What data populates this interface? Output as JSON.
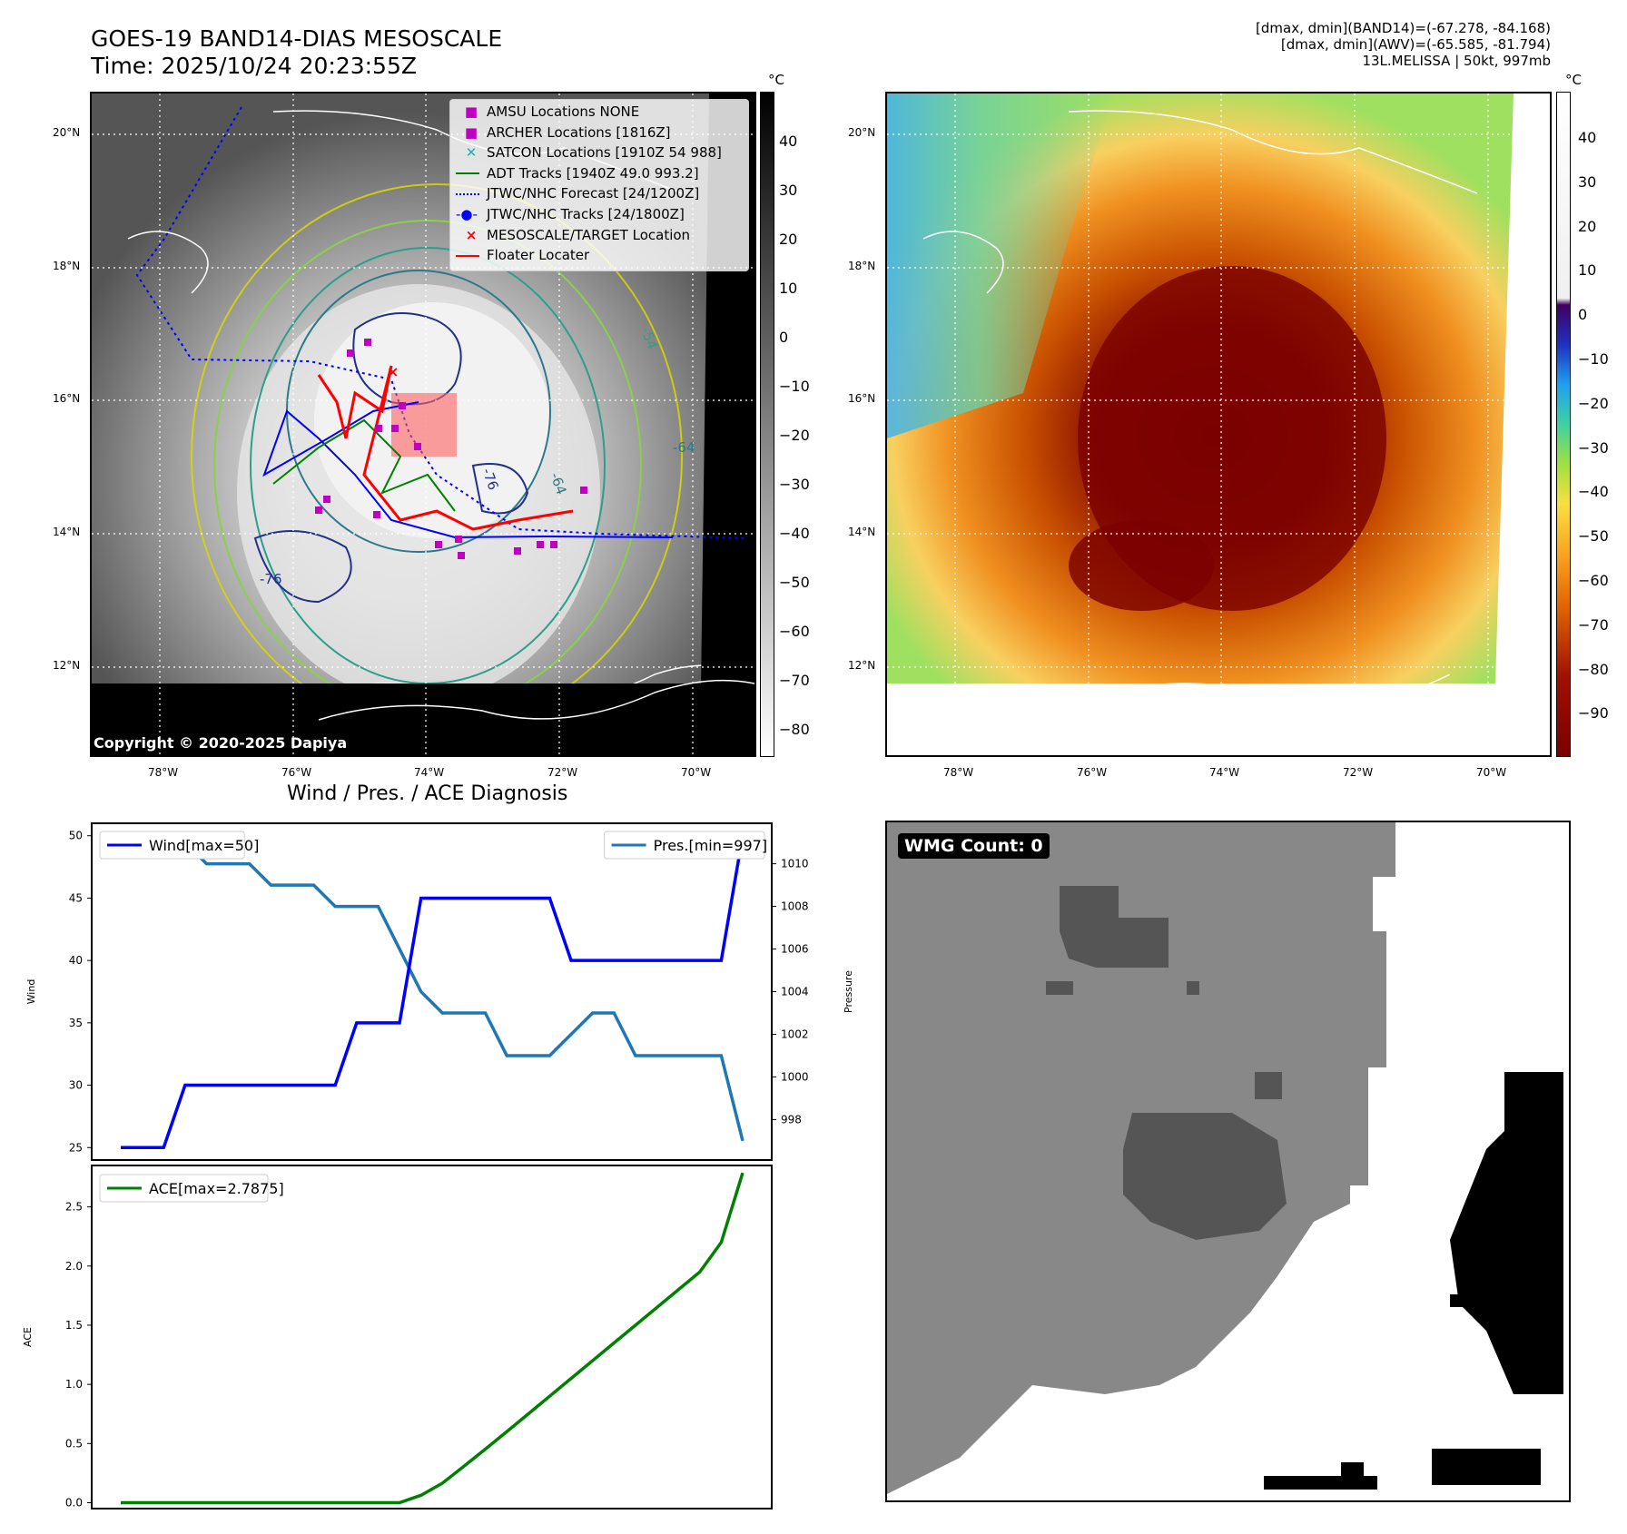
{
  "header": {
    "title_line1": "GOES-19 BAND14-DIAS MESOSCALE",
    "title_line2": "Time: 2025/10/24 20:23:55Z",
    "info_line1": "[dmax, dmin](BAND14)=(-67.278, -84.168)",
    "info_line2": "[dmax, dmin](AWV)=(-65.585, -81.794)",
    "info_line3": "13L.MELISSA | 50kt, 997mb"
  },
  "map_axes": {
    "lon_labels": [
      "78°W",
      "76°W",
      "74°W",
      "72°W",
      "70°W"
    ],
    "lat_labels": [
      "20°N",
      "18°N",
      "16°N",
      "14°N",
      "12°N"
    ]
  },
  "left_map": {
    "copyright": "Copyright © 2020-2025 Dapiya",
    "contour_labels": [
      "-76",
      "-64",
      "-54",
      "-76",
      "-64"
    ],
    "legend": [
      {
        "label": "AMSU Locations NONE",
        "color": "#c000c0"
      },
      {
        "label": "ARCHER Locations [1816Z]",
        "color": "#c000c0"
      },
      {
        "label": "SATCON Locations [1910Z 54 988]",
        "color": "#20b0b0"
      },
      {
        "label": "ADT Tracks [1940Z 49.0 993.2]",
        "color": "#008000"
      },
      {
        "label": "JTWC/NHC Forecast [24/1200Z]",
        "color": "#0000ff"
      },
      {
        "label": "JTWC/NHC Tracks [24/1800Z]",
        "color": "#0000ff"
      },
      {
        "label": "MESOSCALE/TARGET Location",
        "color": "#ff0000"
      },
      {
        "label": "Floater Locater",
        "color": "#ff0000"
      }
    ]
  },
  "colorbar_gray": {
    "unit": "°C",
    "ticks": [
      "40",
      "30",
      "20",
      "10",
      "0",
      "−10",
      "−20",
      "−30",
      "−40",
      "−50",
      "−60",
      "−70",
      "−80"
    ]
  },
  "colorbar_color": {
    "unit": "°C",
    "ticks": [
      "40",
      "30",
      "20",
      "10",
      "0",
      "−10",
      "−20",
      "−30",
      "−40",
      "−50",
      "−60",
      "−70",
      "−80",
      "−90"
    ]
  },
  "wmg": {
    "label": "WMG Count: 0"
  },
  "chart_data": [
    {
      "type": "line",
      "title": "Wind / Pres. / ACE Diagnosis",
      "xlabel": "",
      "ylabel": "Wind",
      "ylabel_right": "Pressure",
      "ylim": [
        24,
        51
      ],
      "ylim_right": [
        996.1,
        1011.9
      ],
      "yticks": [
        25,
        30,
        35,
        40,
        45,
        50
      ],
      "yticks_right": [
        998,
        1000,
        1002,
        1004,
        1006,
        1008,
        1010
      ],
      "x_count": 30,
      "series": [
        {
          "name": "Wind[max=50]",
          "color": "#0000ff",
          "axis": "left",
          "values": [
            25,
            25,
            25,
            30,
            30,
            30,
            30,
            30,
            30,
            30,
            30,
            35,
            35,
            35,
            45,
            45,
            45,
            45,
            45,
            45,
            45,
            40,
            40,
            40,
            40,
            40,
            40,
            40,
            40,
            50
          ]
        },
        {
          "name": "Pres.[min=997]",
          "color": "#1f77b4",
          "axis": "right",
          "values": [
            1011,
            1011,
            1011,
            1011,
            1010,
            1010,
            1010,
            1009,
            1009,
            1009,
            1008,
            1008,
            1008,
            1006,
            1004,
            1003,
            1003,
            1003,
            1001,
            1001,
            1001,
            1002,
            1003,
            1003,
            1001,
            1001,
            1001,
            1001,
            1001,
            997
          ]
        }
      ]
    },
    {
      "type": "line",
      "title": "",
      "xlabel": "",
      "ylabel": "ACE",
      "ylim": [
        -0.05,
        2.85
      ],
      "yticks": [
        0.0,
        0.5,
        1.0,
        1.5,
        2.0,
        2.5
      ],
      "ytick_labels": [
        "0.0",
        "0.5",
        "1.0",
        "1.5",
        "2.0",
        "2.5"
      ],
      "x_count": 30,
      "series": [
        {
          "name": "ACE[max=2.7875]",
          "color": "#008000",
          "values": [
            0,
            0,
            0,
            0,
            0,
            0,
            0,
            0,
            0,
            0,
            0,
            0,
            0,
            0,
            0.0625,
            0.165,
            0.3075,
            0.4525,
            0.6,
            0.75,
            0.9,
            1.05,
            1.2,
            1.35,
            1.5,
            1.65,
            1.8,
            1.95,
            2.2,
            2.7875
          ]
        }
      ]
    }
  ]
}
